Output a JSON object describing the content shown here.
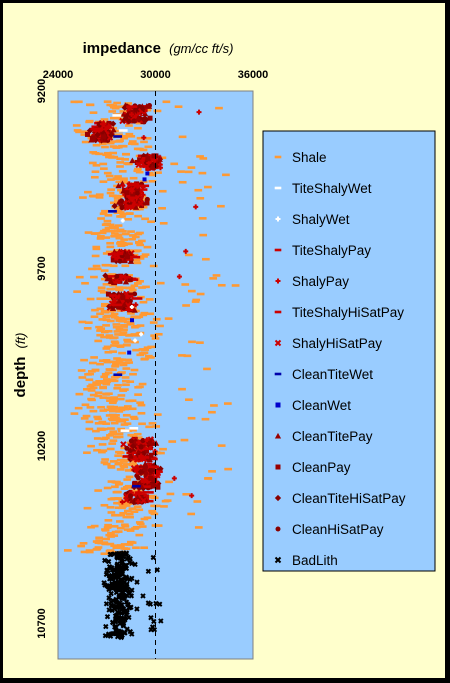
{
  "chart_data": {
    "type": "scatter",
    "title": "",
    "xlabel": "impedance",
    "xlabel_units": "(gm/cc ft/s)",
    "ylabel": "depth",
    "ylabel_units": "(ft)",
    "xlim": [
      24000,
      36000
    ],
    "ylim": [
      9200,
      10800
    ],
    "y_inverted": true,
    "x_axis_position": "top",
    "x_ticks": [
      "24000",
      "30000",
      "36000"
    ],
    "y_ticks": [
      "9200",
      "9700",
      "10200",
      "10700"
    ],
    "reference_line": {
      "x": 30000,
      "style": "dashed"
    },
    "legend_position": "right",
    "plot_background": "#99ccff",
    "series": [
      {
        "name": "Shale",
        "color": "#ff9933",
        "marker": "dash"
      },
      {
        "name": "TiteShalyWet",
        "color": "#ffffff",
        "marker": "dash"
      },
      {
        "name": "ShalyWet",
        "color": "#ffffff",
        "marker": "plus"
      },
      {
        "name": "TiteShalyPay",
        "color": "#cc0000",
        "marker": "dash"
      },
      {
        "name": "ShalyPay",
        "color": "#cc0000",
        "marker": "plus"
      },
      {
        "name": "TiteShalyHiSatPay",
        "color": "#cc0000",
        "marker": "dash"
      },
      {
        "name": "ShalyHiSatPay",
        "color": "#cc0000",
        "marker": "x"
      },
      {
        "name": "CleanTiteWet",
        "color": "#0000aa",
        "marker": "dash"
      },
      {
        "name": "CleanWet",
        "color": "#0000cc",
        "marker": "square"
      },
      {
        "name": "CleanTitePay",
        "color": "#990000",
        "marker": "triangle"
      },
      {
        "name": "CleanPay",
        "color": "#990000",
        "marker": "square"
      },
      {
        "name": "CleanTiteHiSatPay",
        "color": "#880000",
        "marker": "diamond"
      },
      {
        "name": "CleanHiSatPay",
        "color": "#880000",
        "marker": "circle"
      },
      {
        "name": "BadLith",
        "color": "#000000",
        "marker": "x"
      }
    ],
    "trend": {
      "shale_center": [
        [
          9240,
          28500
        ],
        [
          9280,
          27500
        ],
        [
          9330,
          27300
        ],
        [
          9380,
          28200
        ],
        [
          9430,
          28000
        ],
        [
          9480,
          27800
        ],
        [
          9530,
          27800
        ],
        [
          9580,
          27500
        ],
        [
          9630,
          27700
        ],
        [
          9680,
          27600
        ],
        [
          9730,
          27600
        ],
        [
          9780,
          27400
        ],
        [
          9830,
          27900
        ],
        [
          9880,
          27900
        ],
        [
          9930,
          28000
        ],
        [
          9980,
          27300
        ],
        [
          10030,
          27200
        ],
        [
          10080,
          27200
        ],
        [
          10130,
          27500
        ],
        [
          10180,
          28000
        ],
        [
          10230,
          28300
        ],
        [
          10280,
          28600
        ],
        [
          10330,
          28600
        ],
        [
          10380,
          28600
        ],
        [
          10430,
          28000
        ],
        [
          10470,
          27000
        ],
        [
          10500,
          26800
        ]
      ],
      "pay_zones": [
        [
          9240,
          9290,
          28800
        ],
        [
          9290,
          9340,
          26800
        ],
        [
          9380,
          9420,
          29700
        ],
        [
          9460,
          9530,
          28600
        ],
        [
          9650,
          9680,
          28000
        ],
        [
          9720,
          9740,
          27700
        ],
        [
          9770,
          9820,
          28000
        ],
        [
          10180,
          10240,
          29100
        ],
        [
          10250,
          10320,
          29500
        ],
        [
          10330,
          10360,
          28800
        ]
      ],
      "badlith": [
        10500,
        10740,
        27800
      ]
    }
  }
}
